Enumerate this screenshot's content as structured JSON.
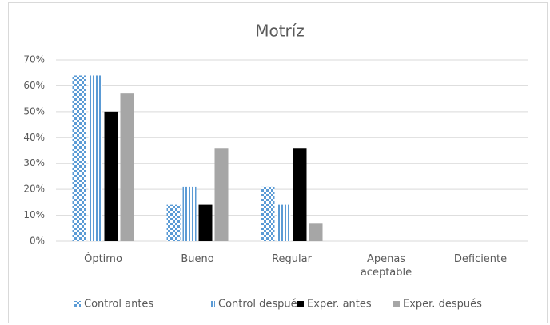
{
  "chart_data": {
    "type": "bar",
    "title": "Motríz",
    "categories": [
      "Óptimo",
      "Bueno",
      "Regular",
      "Apenas aceptable",
      "Deficiente"
    ],
    "series": [
      {
        "name": "Control antes",
        "color": "#5b9bd5",
        "pattern": "checker",
        "values": [
          64,
          14,
          21,
          0,
          0
        ]
      },
      {
        "name": "Control después",
        "color": "#5b9bd5",
        "pattern": "stripes",
        "values": [
          64,
          21,
          14,
          0,
          0
        ]
      },
      {
        "name": "Exper. antes",
        "color": "#000000",
        "values": [
          50,
          14,
          36,
          0,
          0
        ]
      },
      {
        "name": "Exper. después",
        "color": "#a6a6a6",
        "values": [
          57,
          36,
          7,
          0,
          0
        ]
      }
    ],
    "ylim": [
      0,
      70
    ],
    "yticks": [
      {
        "value": 0,
        "label": "0%"
      },
      {
        "value": 10,
        "label": "10%"
      },
      {
        "value": 20,
        "label": "20%"
      },
      {
        "value": 30,
        "label": "30%"
      },
      {
        "value": 40,
        "label": "40%"
      },
      {
        "value": 50,
        "label": "50%"
      },
      {
        "value": 60,
        "label": "60%"
      },
      {
        "value": 70,
        "label": "70%"
      }
    ],
    "grid": true,
    "legend": "bottom"
  }
}
